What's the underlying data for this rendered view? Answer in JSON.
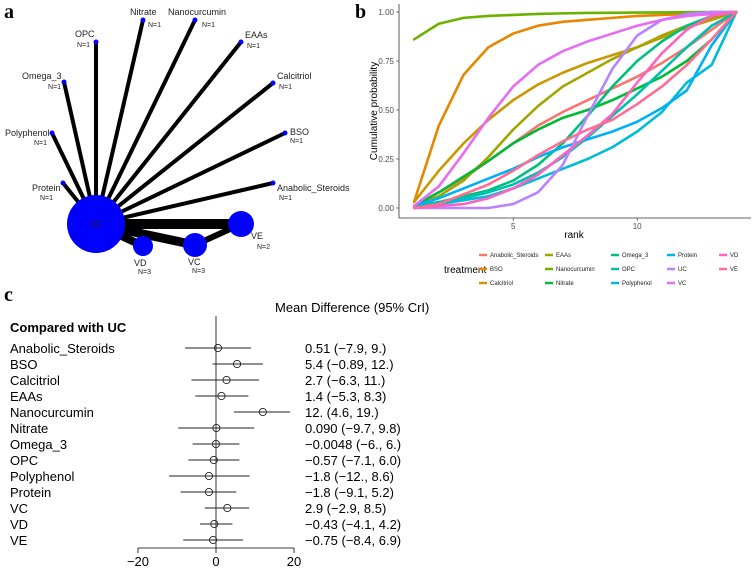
{
  "panels": {
    "a": "a",
    "b": "b",
    "c": "c"
  },
  "network": {
    "hub": "UC",
    "nodes": [
      {
        "name": "Nitrate",
        "n": "N=1"
      },
      {
        "name": "Nanocurcumin",
        "n": "N=1"
      },
      {
        "name": "EAAs",
        "n": "N=1"
      },
      {
        "name": "Calcitriol",
        "n": "N=1"
      },
      {
        "name": "BSO",
        "n": "N=1"
      },
      {
        "name": "Anabolic_Steroids",
        "n": "N=1"
      },
      {
        "name": "Protein",
        "n": "N=1"
      },
      {
        "name": "Polyphenol",
        "n": "N=1"
      },
      {
        "name": "Omega_3",
        "n": "N=1"
      },
      {
        "name": "OPC",
        "n": "N=1"
      },
      {
        "name": "VE",
        "n": "N=2"
      },
      {
        "name": "VC",
        "n": "N=3"
      },
      {
        "name": "VD",
        "n": "N=3"
      }
    ]
  },
  "chart_data": [
    {
      "type": "line",
      "title": "",
      "xlabel": "rank",
      "ylabel": "Cumulative probability",
      "xlim": [
        1,
        14
      ],
      "ylim": [
        0,
        1
      ],
      "xticks": [
        "5",
        "10"
      ],
      "yticks": [
        "0.00",
        "0.25",
        "0.50",
        "0.75",
        "1.00"
      ],
      "legend_title": "treatment",
      "legend_placement": "bottom",
      "x": [
        1,
        2,
        3,
        4,
        5,
        6,
        7,
        8,
        9,
        10,
        11,
        12,
        13,
        14
      ],
      "series": [
        {
          "name": "Anabolic_Steroids",
          "color": "#F8766D",
          "values": [
            0.01,
            0.08,
            0.15,
            0.24,
            0.33,
            0.42,
            0.49,
            0.55,
            0.61,
            0.67,
            0.74,
            0.82,
            0.91,
            1
          ]
        },
        {
          "name": "BSO",
          "color": "#E58700",
          "values": [
            0.03,
            0.42,
            0.68,
            0.82,
            0.89,
            0.93,
            0.95,
            0.96,
            0.97,
            0.98,
            0.985,
            0.99,
            0.995,
            1
          ]
        },
        {
          "name": "Calcitriol",
          "color": "#C99800",
          "values": [
            0.03,
            0.19,
            0.33,
            0.45,
            0.55,
            0.63,
            0.69,
            0.74,
            0.78,
            0.82,
            0.87,
            0.92,
            0.96,
            1
          ]
        },
        {
          "name": "EAAs",
          "color": "#A3A500",
          "values": [
            0.01,
            0.06,
            0.14,
            0.26,
            0.4,
            0.52,
            0.62,
            0.69,
            0.76,
            0.82,
            0.88,
            0.93,
            0.97,
            1
          ]
        },
        {
          "name": "Nanocurcumin",
          "color": "#6BB100",
          "values": [
            0.86,
            0.94,
            0.97,
            0.98,
            0.985,
            0.99,
            0.993,
            0.995,
            0.996,
            0.997,
            0.998,
            0.999,
            1,
            1
          ]
        },
        {
          "name": "Nitrate",
          "color": "#00BA38",
          "values": [
            0.01,
            0.08,
            0.16,
            0.24,
            0.33,
            0.4,
            0.46,
            0.5,
            0.55,
            0.61,
            0.67,
            0.75,
            0.86,
            1
          ]
        },
        {
          "name": "Omega_3",
          "color": "#00BF7D",
          "values": [
            0.01,
            0.03,
            0.06,
            0.09,
            0.14,
            0.22,
            0.33,
            0.47,
            0.62,
            0.75,
            0.85,
            0.93,
            0.98,
            1
          ]
        },
        {
          "name": "OPC",
          "color": "#00C0AF",
          "values": [
            0.01,
            0.03,
            0.05,
            0.08,
            0.12,
            0.18,
            0.26,
            0.36,
            0.47,
            0.58,
            0.7,
            0.82,
            0.93,
            1
          ]
        },
        {
          "name": "Polyphenol",
          "color": "#00BCD8",
          "values": [
            0.0,
            0.02,
            0.04,
            0.06,
            0.1,
            0.15,
            0.2,
            0.25,
            0.31,
            0.39,
            0.49,
            0.64,
            0.73,
            1
          ]
        },
        {
          "name": "Protein",
          "color": "#00B0F6",
          "values": [
            0.01,
            0.05,
            0.1,
            0.15,
            0.2,
            0.26,
            0.31,
            0.35,
            0.39,
            0.44,
            0.51,
            0.6,
            0.83,
            1
          ]
        },
        {
          "name": "UC",
          "color": "#B983FF",
          "values": [
            0,
            0,
            0,
            0,
            0.02,
            0.08,
            0.22,
            0.47,
            0.71,
            0.88,
            0.96,
            0.99,
            1,
            1
          ]
        },
        {
          "name": "VC",
          "color": "#E76BF3",
          "values": [
            0.01,
            0.11,
            0.28,
            0.46,
            0.62,
            0.73,
            0.8,
            0.85,
            0.89,
            0.93,
            0.96,
            0.98,
            0.99,
            1
          ]
        },
        {
          "name": "VD",
          "color": "#FF61C3",
          "values": [
            0,
            0.01,
            0.02,
            0.05,
            0.1,
            0.17,
            0.27,
            0.37,
            0.48,
            0.64,
            0.79,
            0.91,
            0.98,
            1
          ]
        },
        {
          "name": "VE",
          "color": "#FF6C91",
          "values": [
            0,
            0.02,
            0.07,
            0.12,
            0.19,
            0.27,
            0.34,
            0.4,
            0.45,
            0.53,
            0.62,
            0.73,
            0.86,
            1
          ]
        }
      ]
    },
    {
      "type": "forest",
      "title": "Mean Difference (95% CrI)",
      "group_label": "Compared with UC",
      "xlim": [
        -20,
        20
      ],
      "xticks": [
        "−20",
        "0",
        "20"
      ],
      "rows": [
        {
          "name": "Anabolic_Steroids",
          "mean": 0.51,
          "lo": -7.9,
          "hi": 9.0,
          "label": "0.51 (−7.9,  9.)"
        },
        {
          "name": "BSO",
          "mean": 5.4,
          "lo": -0.89,
          "hi": 12.0,
          "label": "5.4 (−0.89,   12.)"
        },
        {
          "name": "Calcitriol",
          "mean": 2.7,
          "lo": -6.3,
          "hi": 11.0,
          "label": "2.7 (−6.3, 11.)"
        },
        {
          "name": "EAAs",
          "mean": 1.4,
          "lo": -5.3,
          "hi": 8.3,
          "label": "1.4 (−5.3, 8.3)"
        },
        {
          "name": "Nanocurcumin",
          "mean": 12.0,
          "lo": 4.6,
          "hi": 19.0,
          "label": " 12. (4.6,   19.)"
        },
        {
          "name": "Nitrate",
          "mean": 0.09,
          "lo": -9.7,
          "hi": 9.8,
          "label": "0.090 (−9.7, 9.8)"
        },
        {
          "name": "Omega_3",
          "mean": -0.0048,
          "lo": -6.0,
          "hi": 6.0,
          "label": "−0.0048 (−6.,  6.)"
        },
        {
          "name": "OPC",
          "mean": -0.57,
          "lo": -7.1,
          "hi": 6.0,
          "label": "−0.57 (−7.1, 6.0)"
        },
        {
          "name": "Polyphenol",
          "mean": -1.8,
          "lo": -12.0,
          "hi": 8.6,
          "label": "−1.8 (−12., 8.6)"
        },
        {
          "name": "Protein",
          "mean": -1.8,
          "lo": -9.1,
          "hi": 5.2,
          "label": "−1.8 (−9.1, 5.2)"
        },
        {
          "name": "VC",
          "mean": 2.9,
          "lo": -2.9,
          "hi": 8.5,
          "label": "2.9 (−2.9, 8.5)"
        },
        {
          "name": "VD",
          "mean": -0.43,
          "lo": -4.1,
          "hi": 4.2,
          "label": "−0.43 (−4.1, 4.2)"
        },
        {
          "name": "VE",
          "mean": -0.75,
          "lo": -8.4,
          "hi": 6.9,
          "label": "−0.75 (−8.4, 6.9)"
        }
      ]
    }
  ]
}
